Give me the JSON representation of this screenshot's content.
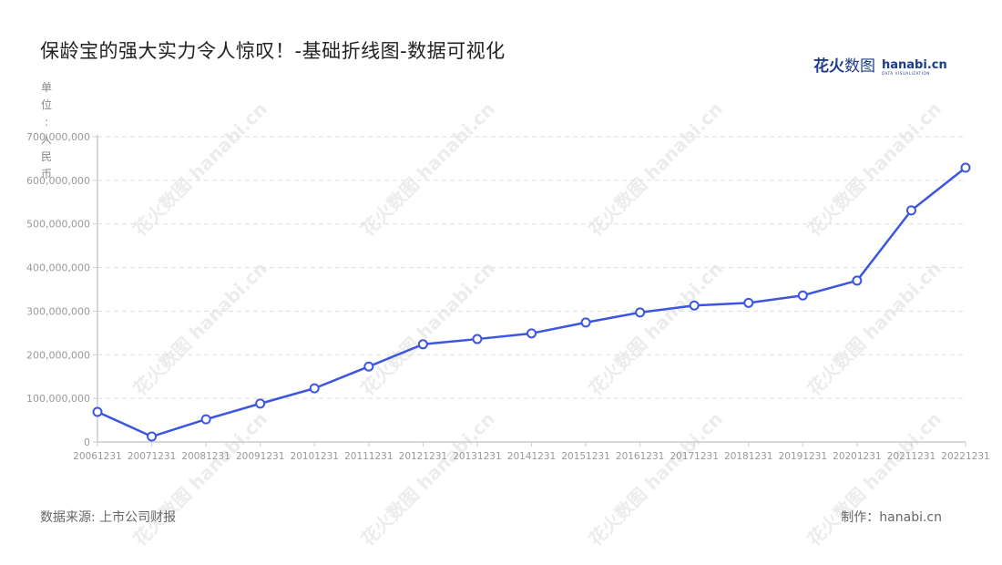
{
  "header": {
    "title": "保龄宝的强大实力令人惊叹！-基础折线图-数据可视化",
    "logo_cn_bold": "花火",
    "logo_cn_thin": "数图",
    "logo_en": "hanabi.cn",
    "logo_sub": "DATA VISUALIZATION"
  },
  "axis": {
    "unit_label": [
      "单",
      "位",
      ":",
      "人",
      "民",
      "币"
    ]
  },
  "footer": {
    "source": "数据来源: 上市公司财报",
    "maker": "制作：hanabi.cn"
  },
  "watermark": "花火数图 hanabi.cn",
  "colors": {
    "line": "#3d56e0",
    "marker_fill": "#ffffff",
    "grid": "#dddddd",
    "axis": "#cccccc"
  },
  "chart_data": {
    "type": "line",
    "title": "保龄宝的强大实力令人惊叹！-基础折线图-数据可视化",
    "xlabel": "",
    "ylabel": "单位:人民币",
    "categories": [
      "20061231",
      "20071231",
      "20081231",
      "20091231",
      "20101231",
      "20111231",
      "20121231",
      "20131231",
      "20141231",
      "20151231",
      "20161231",
      "20171231",
      "20181231",
      "20191231",
      "20201231",
      "20211231",
      "20221231"
    ],
    "series": [
      {
        "name": "保龄宝",
        "values": [
          69000000,
          12500000,
          52000000,
          88000000,
          123000000,
          173000000,
          224000000,
          236000000,
          249000000,
          274000000,
          297000000,
          313000000,
          319000000,
          336000000,
          370000000,
          531000000,
          629000000
        ]
      }
    ],
    "yticks": [
      "0",
      "100,000,000",
      "200,000,000",
      "300,000,000",
      "400,000,000",
      "500,000,000",
      "600,000,000",
      "700,000,000"
    ],
    "ylim": [
      0,
      700000000
    ],
    "grid": true,
    "legend": "none"
  }
}
